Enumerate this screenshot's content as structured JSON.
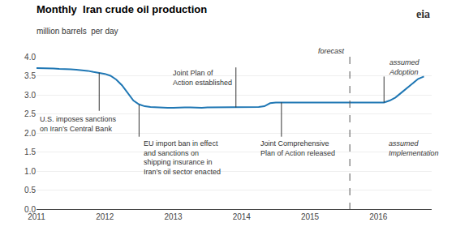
{
  "chart_data": {
    "type": "line",
    "title": "Monthly  Iran crude oil production",
    "subtitle": "million barrels  per day",
    "logo": "eia",
    "x": [
      2011.0,
      2011.083,
      2011.167,
      2011.25,
      2011.333,
      2011.417,
      2011.5,
      2011.583,
      2011.667,
      2011.75,
      2011.833,
      2011.917,
      2012.0,
      2012.083,
      2012.167,
      2012.25,
      2012.333,
      2012.417,
      2012.5,
      2012.583,
      2012.667,
      2012.75,
      2012.833,
      2012.917,
      2013.0,
      2013.083,
      2013.167,
      2013.25,
      2013.333,
      2013.417,
      2013.5,
      2013.583,
      2013.667,
      2013.75,
      2013.833,
      2013.917,
      2014.0,
      2014.083,
      2014.167,
      2014.25,
      2014.333,
      2014.417,
      2014.5,
      2014.583,
      2014.667,
      2014.75,
      2014.833,
      2014.917,
      2015.0,
      2015.083,
      2015.167,
      2015.25,
      2015.333,
      2015.417,
      2015.5,
      2015.583,
      2015.667,
      2015.75,
      2015.833,
      2015.917,
      2016.0,
      2016.083,
      2016.167,
      2016.25,
      2016.333,
      2016.417,
      2016.5,
      2016.583,
      2016.667
    ],
    "values": [
      3.7,
      3.7,
      3.7,
      3.69,
      3.68,
      3.68,
      3.67,
      3.66,
      3.65,
      3.63,
      3.6,
      3.58,
      3.55,
      3.5,
      3.4,
      3.25,
      3.05,
      2.85,
      2.75,
      2.7,
      2.68,
      2.67,
      2.67,
      2.66,
      2.66,
      2.67,
      2.67,
      2.67,
      2.66,
      2.66,
      2.67,
      2.67,
      2.67,
      2.68,
      2.68,
      2.67,
      2.67,
      2.67,
      2.67,
      2.68,
      2.7,
      2.78,
      2.8,
      2.8,
      2.8,
      2.8,
      2.8,
      2.8,
      2.8,
      2.8,
      2.8,
      2.8,
      2.8,
      2.8,
      2.8,
      2.8,
      2.8,
      2.8,
      2.8,
      2.8,
      2.8,
      2.8,
      2.85,
      2.93,
      3.05,
      3.18,
      3.3,
      3.42,
      3.48
    ],
    "xlim": [
      2011.0,
      2016.78
    ],
    "xticks": [
      2011,
      2012,
      2013,
      2014,
      2015,
      2016
    ],
    "ylim": [
      0,
      4.0
    ],
    "yticks": [
      {
        "value": 0,
        "label": "0.0"
      },
      0.5,
      {
        "value": 1.0,
        "label": "1.0"
      },
      1.5,
      {
        "value": 2.0,
        "label": "2.0"
      },
      2.5,
      {
        "value": 3.0,
        "label": "3.0"
      },
      3.5,
      {
        "value": 4.0,
        "label": "4.0"
      }
    ],
    "grid": "y",
    "annotations": [
      {
        "text": "U.S. imposes sanctions\non Iran’s Central Bank",
        "x": 2011.917
      },
      {
        "text": "EU import ban in effect\nand sanctions on\nshipping insurance in\nIran’s oil sector enacted",
        "x": 2012.5
      },
      {
        "text": "Joint Plan of\nAction established",
        "x": 2013.917
      },
      {
        "text": "Joint Comprehensive\nPlan of Action released",
        "x": 2014.583
      },
      {
        "text": "forecast",
        "x": 2015.583,
        "line_style": "dashed"
      },
      {
        "text": "assumed\nAdoption",
        "x": 2016.083
      },
      {
        "text": "assumed\nImplementation",
        "x": 2016.083
      }
    ]
  }
}
